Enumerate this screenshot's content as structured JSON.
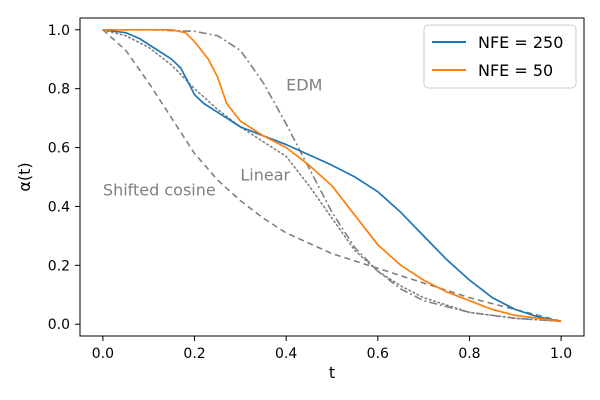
{
  "chart_data": {
    "type": "line",
    "title": "",
    "xlabel": "t",
    "ylabel": "α(t)",
    "xlim": [
      -0.05,
      1.05
    ],
    "ylim": [
      -0.04,
      1.04
    ],
    "xticks": [
      0.0,
      0.2,
      0.4,
      0.6,
      0.8,
      1.0
    ],
    "xtick_labels": [
      "0.0",
      "0.2",
      "0.4",
      "0.6",
      "0.8",
      "1.0"
    ],
    "yticks": [
      0.0,
      0.2,
      0.4,
      0.6,
      0.8,
      1.0
    ],
    "ytick_labels": [
      "0.0",
      "0.2",
      "0.4",
      "0.6",
      "0.8",
      "1.0"
    ],
    "legend_position": "top-right",
    "series": [
      {
        "name": "NFE = 250",
        "role": "legend",
        "color": "#1f77b4",
        "style": "solid",
        "x": [
          0.0,
          0.05,
          0.08,
          0.12,
          0.15,
          0.17,
          0.19,
          0.2,
          0.22,
          0.25,
          0.3,
          0.35,
          0.4,
          0.45,
          0.5,
          0.55,
          0.6,
          0.65,
          0.7,
          0.75,
          0.8,
          0.85,
          0.9,
          0.95,
          1.0
        ],
        "y": [
          1.0,
          0.99,
          0.97,
          0.93,
          0.9,
          0.87,
          0.81,
          0.78,
          0.75,
          0.72,
          0.67,
          0.64,
          0.61,
          0.575,
          0.54,
          0.5,
          0.45,
          0.38,
          0.3,
          0.22,
          0.15,
          0.09,
          0.05,
          0.025,
          0.01
        ]
      },
      {
        "name": "NFE = 50",
        "role": "legend",
        "color": "#ff7f0e",
        "style": "solid",
        "x": [
          0.0,
          0.1,
          0.15,
          0.18,
          0.2,
          0.23,
          0.25,
          0.27,
          0.3,
          0.35,
          0.4,
          0.45,
          0.5,
          0.55,
          0.6,
          0.65,
          0.7,
          0.75,
          0.8,
          0.85,
          0.9,
          0.95,
          1.0
        ],
        "y": [
          1.0,
          1.0,
          1.0,
          0.99,
          0.96,
          0.9,
          0.84,
          0.75,
          0.69,
          0.64,
          0.6,
          0.54,
          0.47,
          0.37,
          0.27,
          0.2,
          0.15,
          0.11,
          0.08,
          0.05,
          0.03,
          0.02,
          0.01
        ]
      },
      {
        "name": "EDM",
        "role": "annotated",
        "color": "#808080",
        "style": "dashdot",
        "x": [
          0.0,
          0.1,
          0.2,
          0.25,
          0.3,
          0.35,
          0.4,
          0.45,
          0.5,
          0.55,
          0.6,
          0.65,
          0.7,
          0.8,
          0.9,
          1.0
        ],
        "y": [
          1.0,
          1.0,
          0.995,
          0.98,
          0.93,
          0.82,
          0.68,
          0.53,
          0.38,
          0.26,
          0.18,
          0.12,
          0.08,
          0.04,
          0.02,
          0.01
        ]
      },
      {
        "name": "Linear",
        "role": "annotated",
        "color": "#808080",
        "style": "dotted",
        "x": [
          0.0,
          0.05,
          0.1,
          0.15,
          0.2,
          0.25,
          0.3,
          0.35,
          0.4,
          0.45,
          0.5,
          0.55,
          0.6,
          0.65,
          0.7,
          0.8,
          0.9,
          1.0
        ],
        "y": [
          1.0,
          0.98,
          0.94,
          0.88,
          0.8,
          0.73,
          0.67,
          0.62,
          0.57,
          0.47,
          0.36,
          0.25,
          0.18,
          0.13,
          0.09,
          0.04,
          0.02,
          0.01
        ]
      },
      {
        "name": "Shifted cosine",
        "role": "annotated",
        "color": "#808080",
        "style": "dashed",
        "x": [
          0.0,
          0.05,
          0.1,
          0.15,
          0.2,
          0.25,
          0.3,
          0.35,
          0.4,
          0.5,
          0.6,
          0.7,
          0.8,
          0.9,
          1.0
        ],
        "y": [
          1.0,
          0.93,
          0.82,
          0.7,
          0.58,
          0.49,
          0.42,
          0.36,
          0.31,
          0.24,
          0.19,
          0.14,
          0.09,
          0.05,
          0.01
        ]
      }
    ],
    "annotations": [
      {
        "text": "EDM",
        "x": 0.4,
        "y": 0.81
      },
      {
        "text": "Linear",
        "x": 0.3,
        "y": 0.505
      },
      {
        "text": "Shifted cosine",
        "x": 0.0,
        "y": 0.455
      }
    ]
  }
}
